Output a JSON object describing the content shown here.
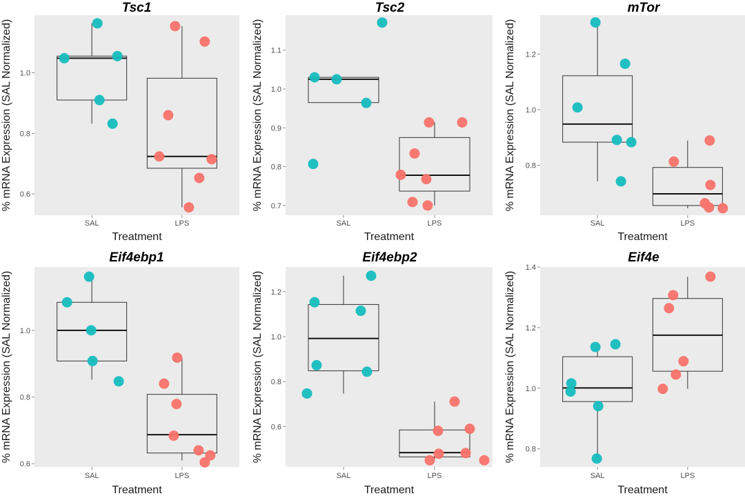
{
  "figure": {
    "description": "Six box plots of mRNA expression (SAL normalized) for SAL vs LPS treatment",
    "colors": {
      "SAL": "#17bdbf",
      "LPS": "#f8736c",
      "panel_background": "#ebebeb"
    }
  },
  "chart_data": [
    {
      "type": "box",
      "title": "Tsc1",
      "xlabel": "Treatment",
      "ylabel": "% mRNA Expression (SAL Normalized)",
      "categories": [
        "SAL",
        "LPS"
      ],
      "ylim": [
        0.53,
        1.19
      ],
      "yticks": [
        0.6,
        0.8,
        1.0
      ],
      "ytick_labels": [
        "0.6",
        "0.8",
        "1.0"
      ],
      "grid": false,
      "series": [
        {
          "name": "SAL",
          "points": [
            1.163,
            1.048,
            1.055,
            0.91,
            0.832
          ],
          "q1": 0.91,
          "median": 1.048,
          "q3": 1.055,
          "whisker_low": 0.832,
          "whisker_high": 1.163
        },
        {
          "name": "LPS",
          "points": [
            1.154,
            1.103,
            0.86,
            0.724,
            0.715,
            0.653,
            0.556
          ],
          "q1": 0.685,
          "median": 0.724,
          "q3": 0.982,
          "whisker_low": 0.556,
          "whisker_high": 1.154
        }
      ]
    },
    {
      "type": "box",
      "title": "Tsc2",
      "xlabel": "Treatment",
      "ylabel": "% mRNA Expression (SAL Normalized)",
      "categories": [
        "SAL",
        "LPS"
      ],
      "ylim": [
        0.675,
        1.19
      ],
      "yticks": [
        0.7,
        0.8,
        0.9,
        1.0,
        1.1
      ],
      "ytick_labels": [
        "0.7",
        "0.8",
        "0.9",
        "1.0",
        "1.1"
      ],
      "grid": false,
      "series": [
        {
          "name": "SAL",
          "points": [
            1.03,
            1.025,
            0.964,
            1.171,
            0.807
          ],
          "q1": 0.965,
          "median": 1.025,
          "q3": 1.03,
          "whisker_low": 0.965,
          "whisker_high": 1.03
        },
        {
          "name": "LPS",
          "points": [
            0.914,
            0.914,
            0.834,
            0.779,
            0.768,
            0.709,
            0.7
          ],
          "q1": 0.737,
          "median": 0.778,
          "q3": 0.875,
          "whisker_low": 0.7,
          "whisker_high": 0.914
        }
      ]
    },
    {
      "type": "box",
      "title": "mTor",
      "xlabel": "Treatment",
      "ylabel": "% mRNA Expression (SAL Normalized)",
      "categories": [
        "SAL",
        "LPS"
      ],
      "ylim": [
        0.62,
        1.34
      ],
      "yticks": [
        0.8,
        1.0,
        1.2
      ],
      "ytick_labels": [
        "0.8",
        "1.0",
        "1.2"
      ],
      "grid": false,
      "series": [
        {
          "name": "SAL",
          "points": [
            1.314,
            1.165,
            1.008,
            0.891,
            0.883,
            0.742
          ],
          "q1": 0.883,
          "median": 0.948,
          "q3": 1.122,
          "whisker_low": 0.742,
          "whisker_high": 1.314
        },
        {
          "name": "LPS",
          "points": [
            0.813,
            0.889,
            0.729,
            0.663,
            0.648,
            0.645
          ],
          "q1": 0.655,
          "median": 0.697,
          "q3": 0.792,
          "whisker_low": 0.645,
          "whisker_high": 0.889
        }
      ]
    },
    {
      "type": "box",
      "title": "Eif4ebp1",
      "xlabel": "Treatment",
      "ylabel": "% mRNA Expression (SAL Normalized)",
      "categories": [
        "SAL",
        "LPS"
      ],
      "ylim": [
        0.59,
        1.19
      ],
      "yticks": [
        0.6,
        0.8,
        1.0
      ],
      "ytick_labels": [
        "0.6",
        "0.8",
        "1.0"
      ],
      "grid": false,
      "series": [
        {
          "name": "SAL",
          "points": [
            1.161,
            1.084,
            1.0,
            0.908,
            0.847
          ],
          "q1": 0.908,
          "median": 1.0,
          "q3": 1.084,
          "whisker_low": 0.852,
          "whisker_high": 1.161
        },
        {
          "name": "LPS",
          "points": [
            0.918,
            0.84,
            0.779,
            0.684,
            0.64,
            0.625,
            0.604
          ],
          "q1": 0.632,
          "median": 0.687,
          "q3": 0.808,
          "whisker_low": 0.61,
          "whisker_high": 0.918
        }
      ]
    },
    {
      "type": "box",
      "title": "Eif4ebp2",
      "xlabel": "Treatment",
      "ylabel": "% mRNA Expression (SAL Normalized)",
      "categories": [
        "SAL",
        "LPS"
      ],
      "ylim": [
        0.42,
        1.31
      ],
      "yticks": [
        0.6,
        0.8,
        1.0,
        1.2
      ],
      "ytick_labels": [
        "0.6",
        "0.8",
        "1.0",
        "1.2"
      ],
      "grid": false,
      "series": [
        {
          "name": "SAL",
          "points": [
            1.271,
            1.153,
            1.115,
            0.873,
            0.844,
            0.747
          ],
          "q1": 0.848,
          "median": 0.992,
          "q3": 1.143,
          "whisker_low": 0.747,
          "whisker_high": 1.271
        },
        {
          "name": "LPS",
          "points": [
            0.711,
            0.581,
            0.59,
            0.479,
            0.482,
            0.45,
            0.45
          ],
          "q1": 0.465,
          "median": 0.484,
          "q3": 0.585,
          "whisker_low": 0.45,
          "whisker_high": 0.711
        }
      ]
    },
    {
      "type": "box",
      "title": "Eif4e",
      "xlabel": "Treatment",
      "ylabel": "% mRNA Expression (SAL Normalized)",
      "categories": [
        "SAL",
        "LPS"
      ],
      "ylim": [
        0.74,
        1.4
      ],
      "yticks": [
        0.8,
        1.0,
        1.2,
        1.4
      ],
      "ytick_labels": [
        "0.8",
        "1.0",
        "1.2",
        "1.4"
      ],
      "grid": false,
      "series": [
        {
          "name": "SAL",
          "points": [
            1.136,
            1.145,
            1.016,
            0.989,
            0.941,
            0.768
          ],
          "q1": 0.956,
          "median": 1.001,
          "q3": 1.104,
          "whisker_low": 0.768,
          "whisker_high": 1.136
        },
        {
          "name": "LPS",
          "points": [
            1.368,
            1.307,
            1.264,
            1.089,
            1.045,
            0.998
          ],
          "q1": 1.056,
          "median": 1.175,
          "q3": 1.296,
          "whisker_low": 0.998,
          "whisker_high": 1.368
        }
      ]
    }
  ]
}
